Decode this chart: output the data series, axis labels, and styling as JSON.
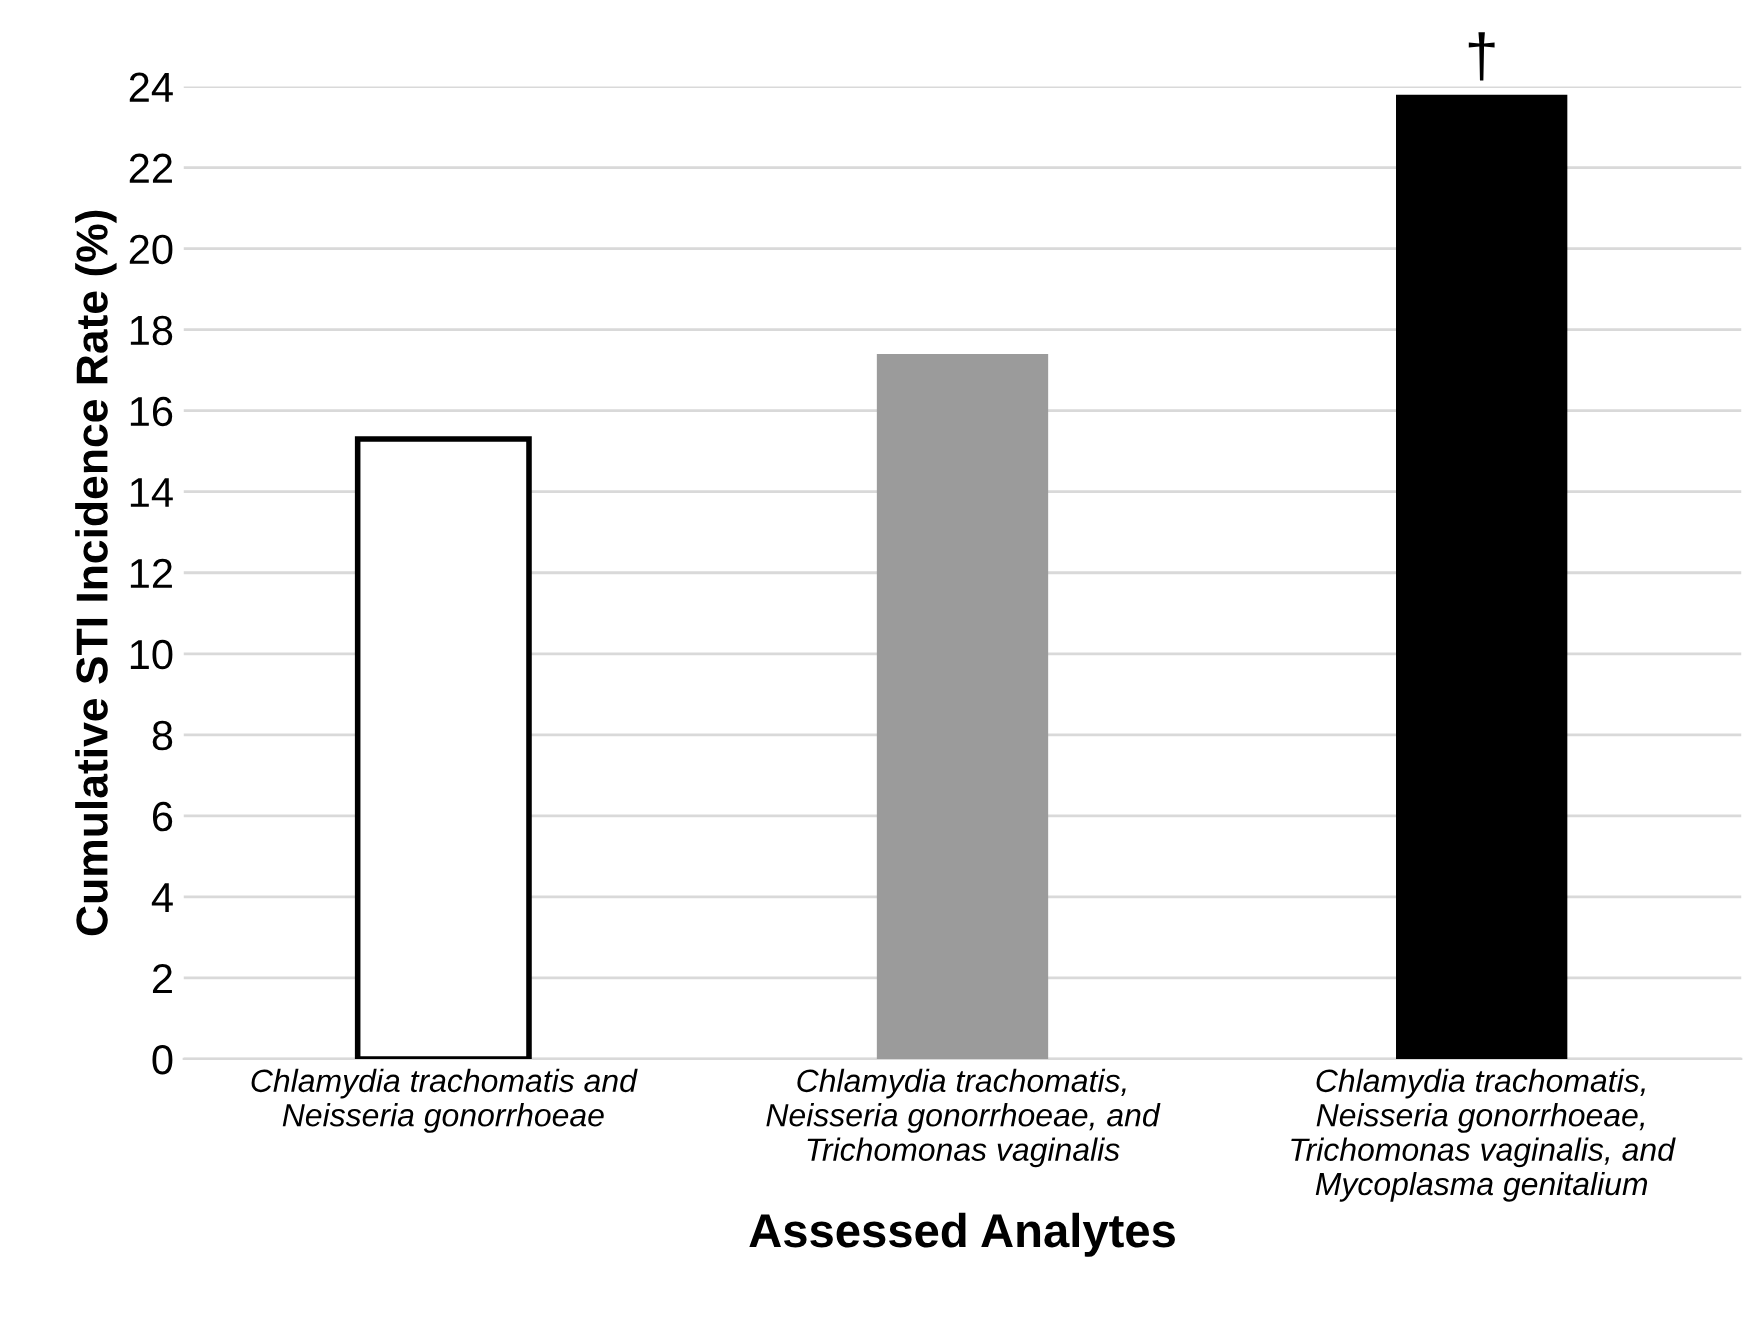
{
  "chart_data": {
    "type": "bar",
    "xlabel": "Assessed Analytes",
    "ylabel": "Cumulative STI Incidence Rate (%)",
    "categories": [
      "Chlamydia trachomatis and\nNeisseria gonorrhoeae",
      "Chlamydia trachomatis,\nNeisseria gonorrhoeae, and\nTrichomonas vaginalis",
      "Chlamydia trachomatis,\nNeisseria gonorrhoeae,\nTrichomonas vaginalis, and\nMycoplasma genitalium"
    ],
    "values": [
      15.3,
      17.4,
      23.8
    ],
    "colors": [
      "#ffffff",
      "#9b9b9b",
      "#000000"
    ],
    "ylim": [
      0,
      24
    ],
    "yticks": [
      0,
      2,
      4,
      6,
      8,
      10,
      12,
      14,
      16,
      18,
      20,
      22,
      24
    ],
    "grid": "y",
    "annotations": [
      {
        "text": "†",
        "x": "Chlamydia trachomatis,\nNeisseria gonorrhoeae,\nTrichomonas vaginalis, and\nMycoplasma genitalium",
        "y": 23.8
      }
    ]
  }
}
